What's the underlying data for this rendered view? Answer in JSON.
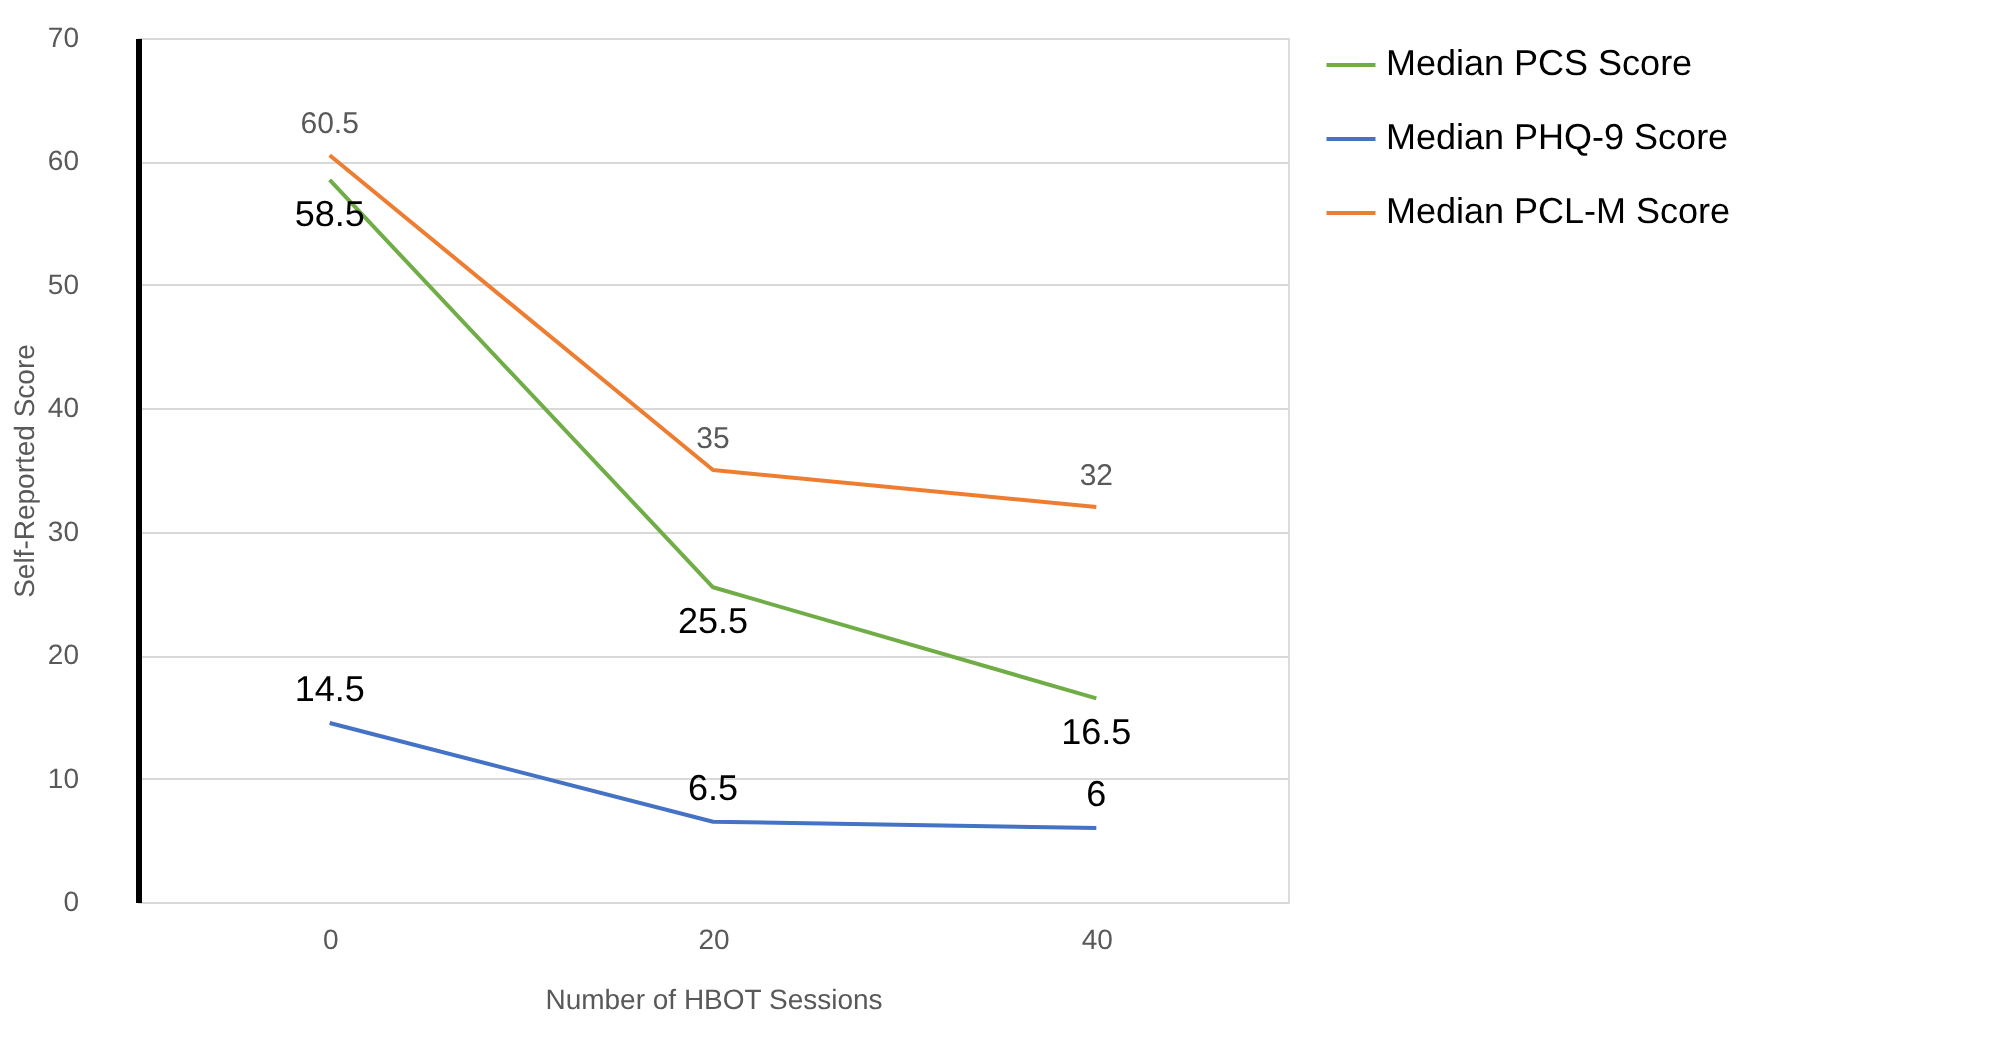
{
  "chart_data": {
    "type": "line",
    "xlabel": "Number of HBOT Sessions",
    "ylabel": "Self-Reported Score",
    "categories": [
      "0",
      "20",
      "40"
    ],
    "series": [
      {
        "name": "Median PCS Score",
        "color": "#70ad47",
        "values": [
          58.5,
          25.5,
          16.5
        ]
      },
      {
        "name": "Median PHQ-9 Score",
        "color": "#4472c4",
        "values": [
          14.5,
          6.5,
          6
        ]
      },
      {
        "name": "Median PCL-M Score",
        "color": "#ed7d31",
        "values": [
          60.5,
          35,
          32
        ]
      }
    ],
    "ylim": [
      0,
      70
    ],
    "yticks": [
      0,
      10,
      20,
      30,
      40,
      50,
      60,
      70
    ],
    "grid": "y",
    "legend": "right",
    "data_labels": true,
    "marker": "none",
    "line_style": "solid"
  }
}
